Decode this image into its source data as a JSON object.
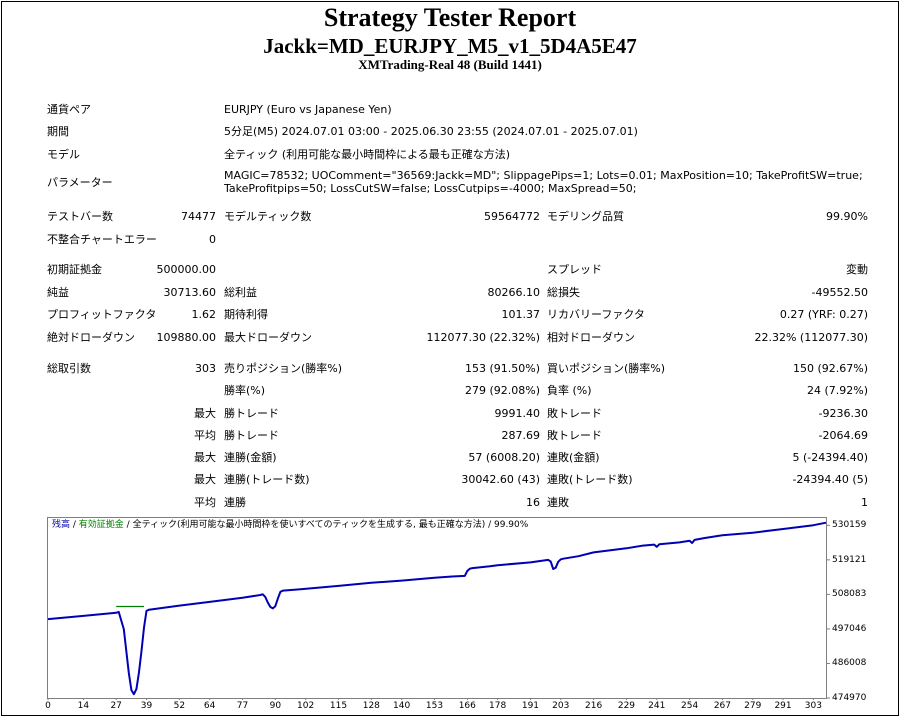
{
  "header": {
    "title": "Strategy Tester Report",
    "ea_name": "Jackk=MD_EURJPY_M5_v1_5D4A5E47",
    "server": "XMTrading-Real 48 (Build 1441)"
  },
  "info": {
    "symbol_label": "通貨ペア",
    "symbol_value": "EURJPY (Euro vs Japanese Yen)",
    "period_label": "期間",
    "period_value": "5分足(M5) 2024.07.01 03:00 - 2025.06.30 23:55 (2024.07.01 - 2025.07.01)",
    "model_label": "モデル",
    "model_value": "全ティック (利用可能な最小時間枠による最も正確な方法)",
    "params_label": "パラメーター",
    "params_line1": "MAGIC=78532; UOComment=\"36569:Jackk=MD\"; SlippagePips=1; Lots=0.01; MaxPosition=10; TakeProfitSW=true;",
    "params_line2": "TakeProfitpips=50; LossCutSW=false; LossCutpips=-4000; MaxSpread=50;"
  },
  "stats": {
    "bars_label": "テストバー数",
    "bars_value": "74477",
    "ticks_label": "モデルティック数",
    "ticks_value": "59564772",
    "quality_label": "モデリング品質",
    "quality_value": "99.90%",
    "mismatch_label": "不整合チャートエラー",
    "mismatch_value": "0",
    "deposit_label": "初期証拠金",
    "deposit_value": "500000.00",
    "spread_label": "スプレッド",
    "spread_value": "変動",
    "net_label": "純益",
    "net_value": "30713.60",
    "gross_profit_label": "総利益",
    "gross_profit_value": "80266.10",
    "gross_loss_label": "総損失",
    "gross_loss_value": "-49552.50",
    "pf_label": "プロフィットファクタ",
    "pf_value": "1.62",
    "expected_label": "期待利得",
    "expected_value": "101.37",
    "recovery_label": "リカバリーファクタ",
    "recovery_value": "0.27 (YRF: 0.27)",
    "abs_dd_label": "絶対ドローダウン",
    "abs_dd_value": "109880.00",
    "max_dd_label": "最大ドローダウン",
    "max_dd_value": "112077.30 (22.32%)",
    "rel_dd_label": "相対ドローダウン",
    "rel_dd_value": "22.32% (112077.30)",
    "trades_label": "総取引数",
    "trades_value": "303",
    "short_label": "売りポジション(勝率%)",
    "short_value": "153 (91.50%)",
    "long_label": "買いポジション(勝率%)",
    "long_value": "150 (92.67%)",
    "win_rate_label": "勝率(%)",
    "win_rate_value": "279 (92.08%)",
    "loss_rate_label": "負率 (%)",
    "loss_rate_value": "24 (7.92%)",
    "max_prefix": "最大",
    "avg_prefix": "平均",
    "largest_win_label": "勝トレード",
    "largest_win_value": "9991.40",
    "largest_loss_label": "敗トレード",
    "largest_loss_value": "-9236.30",
    "avg_win_label": "勝トレード",
    "avg_win_value": "287.69",
    "avg_loss_label": "敗トレード",
    "avg_loss_value": "-2064.69",
    "consec_win_money_label": "連勝(金額)",
    "consec_win_money_value": "57 (6008.20)",
    "consec_loss_money_label": "連敗(金額)",
    "consec_loss_money_value": "5 (-24394.40)",
    "consec_win_trades_label": "連勝(トレード数)",
    "consec_win_trades_value": "30042.60 (43)",
    "consec_loss_trades_label": "連敗(トレード数)",
    "consec_loss_trades_value": "-24394.40 (5)",
    "avg_consec_win_label": "連勝",
    "avg_consec_win_value": "16",
    "avg_consec_loss_label": "連敗",
    "avg_consec_loss_value": "1"
  },
  "chart_legend": {
    "balance": "残高",
    "sep1": " / ",
    "equity": "有効証拠金",
    "sep2": " / ",
    "rest": "全ティック(利用可能な最小時間枠を使いすべてのティックを生成する, 最も正確な方法) / 99.90%"
  },
  "chart_data": {
    "type": "line",
    "title": "",
    "xlabel": "",
    "ylabel": "",
    "xlim": [
      0,
      308
    ],
    "ylim": [
      474970,
      532500
    ],
    "x_ticks": [
      "0",
      "14",
      "27",
      "39",
      "52",
      "64",
      "77",
      "90",
      "102",
      "115",
      "128",
      "140",
      "153",
      "166",
      "178",
      "191",
      "203",
      "216",
      "229",
      "241",
      "254",
      "267",
      "279",
      "291",
      "303"
    ],
    "y_ticks": [
      "530159",
      "519121",
      "508083",
      "497046",
      "486008",
      "474970"
    ],
    "series": [
      {
        "name": "残高",
        "color": "#0000b4",
        "x": [
          0,
          14,
          27,
          28,
          30,
          31,
          32,
          33,
          34,
          35,
          36,
          37,
          38,
          39,
          40,
          52,
          64,
          77,
          84,
          85,
          86,
          87,
          88,
          89,
          90,
          91,
          92,
          93,
          100,
          115,
          128,
          140,
          153,
          160,
          165,
          166,
          167,
          168,
          175,
          178,
          191,
          198,
          199,
          200,
          201,
          202,
          203,
          204,
          210,
          216,
          229,
          235,
          240,
          241,
          242,
          250,
          254,
          255,
          256,
          260,
          267,
          279,
          291,
          303,
          308
        ],
        "y": [
          500200,
          501200,
          502200,
          502500,
          497000,
          490000,
          483000,
          477500,
          476200,
          477800,
          483000,
          490000,
          497500,
          502800,
          503200,
          504500,
          505700,
          507000,
          507900,
          508100,
          507300,
          505500,
          504100,
          503600,
          504300,
          506800,
          508900,
          509300,
          509700,
          510800,
          511800,
          512500,
          513400,
          513800,
          514000,
          515600,
          516300,
          516500,
          517100,
          517400,
          518300,
          519100,
          518600,
          516200,
          516600,
          518500,
          519300,
          519500,
          520300,
          521500,
          522800,
          523600,
          524000,
          523300,
          524100,
          524700,
          525200,
          524500,
          525500,
          526100,
          527000,
          527800,
          529000,
          530200,
          531000
        ]
      },
      {
        "name": "有効証拠金",
        "color": "#008000",
        "x": [
          27,
          38
        ],
        "y": [
          504200,
          504200
        ]
      }
    ],
    "grid": false
  }
}
